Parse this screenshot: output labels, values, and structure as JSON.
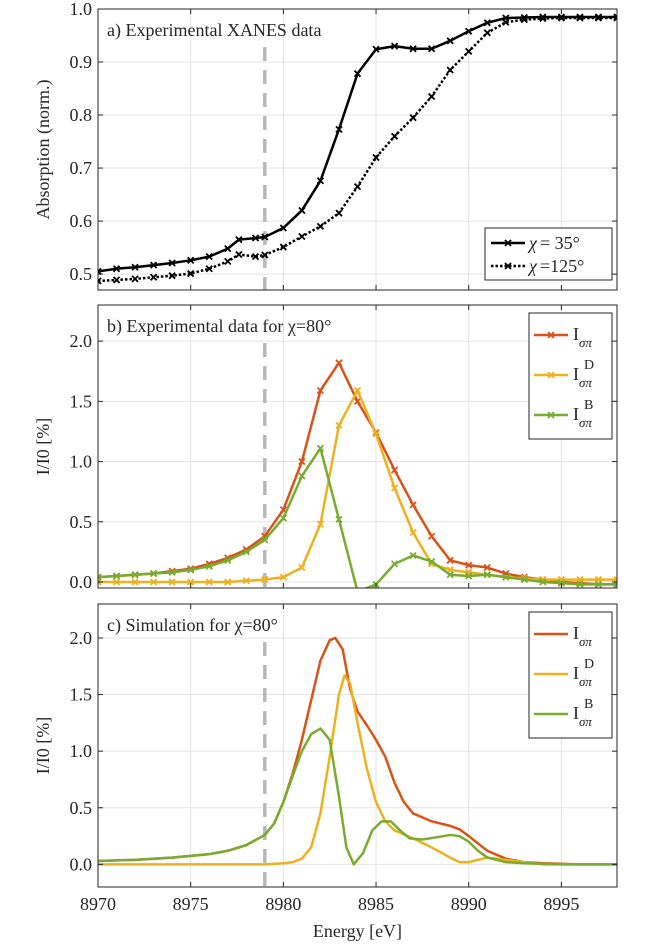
{
  "chart_data": [
    {
      "type": "line",
      "panel": "a",
      "title": "a) Experimental XANES data",
      "xlabel": "",
      "ylabel": "Absorption (norm.)",
      "xlim": [
        8970,
        8998
      ],
      "ylim": [
        0.47,
        1.0
      ],
      "yticks": [
        0.5,
        0.6,
        0.7,
        0.8,
        0.9,
        1.0
      ],
      "ytick_labels": [
        "0.5",
        "0.6",
        "0.7",
        "0.8",
        "0.9",
        "1.0"
      ],
      "grid": true,
      "legend_position": "bottom-right",
      "vline": 8979,
      "series": [
        {
          "name": "χ= 35°",
          "legend_text": "= 35°",
          "color": "#000000",
          "dash": "solid",
          "marker": "x",
          "x": [
            8970,
            8971,
            8972,
            8973,
            8974,
            8975,
            8976,
            8977,
            8977.6,
            8978.5,
            8979,
            8980,
            8981,
            8982,
            8983,
            8984,
            8985,
            8986,
            8987,
            8988,
            8989,
            8990,
            8991,
            8992,
            8993,
            8994,
            8995,
            8996,
            8997,
            8998
          ],
          "y": [
            0.505,
            0.51,
            0.513,
            0.517,
            0.521,
            0.526,
            0.533,
            0.548,
            0.565,
            0.568,
            0.57,
            0.587,
            0.62,
            0.676,
            0.773,
            0.878,
            0.924,
            0.93,
            0.925,
            0.925,
            0.94,
            0.958,
            0.974,
            0.983,
            0.984,
            0.985,
            0.985,
            0.985,
            0.985,
            0.985
          ]
        },
        {
          "name": "χ=125°",
          "legend_text": "=125°",
          "color": "#000000",
          "dash": "dotted",
          "marker": "x",
          "x": [
            8970,
            8971,
            8972,
            8973,
            8974,
            8975,
            8976,
            8977,
            8977.6,
            8978.5,
            8979,
            8980,
            8981,
            8982,
            8983,
            8984,
            8985,
            8986,
            8987,
            8988,
            8989,
            8990,
            8991,
            8992,
            8993,
            8994,
            8995,
            8996,
            8997,
            8998
          ],
          "y": [
            0.487,
            0.489,
            0.491,
            0.494,
            0.497,
            0.501,
            0.51,
            0.524,
            0.537,
            0.533,
            0.536,
            0.551,
            0.571,
            0.59,
            0.615,
            0.665,
            0.72,
            0.76,
            0.795,
            0.835,
            0.885,
            0.92,
            0.955,
            0.975,
            0.98,
            0.982,
            0.983,
            0.983,
            0.983,
            0.983
          ]
        }
      ]
    },
    {
      "type": "line",
      "panel": "b",
      "title": "b) Experimental data for χ=80°",
      "xlabel": "",
      "ylabel": "I/I0 [%]",
      "xlim": [
        8970,
        8998
      ],
      "ylim": [
        -0.05,
        2.3
      ],
      "yticks": [
        0,
        0.5,
        1.0,
        1.5,
        2.0
      ],
      "ytick_labels": [
        "0.0",
        "0.5",
        "1.0",
        "1.5",
        "2.0"
      ],
      "grid": true,
      "legend_position": "top-right",
      "vline": 8979,
      "series": [
        {
          "name": "Iσπ",
          "sup": "",
          "color": "#D95319",
          "marker": "x",
          "x": [
            8970,
            8971,
            8972,
            8973,
            8974,
            8975,
            8976,
            8977,
            8978,
            8979,
            8980,
            8981,
            8982,
            8983,
            8984,
            8985,
            8986,
            8987,
            8988,
            8989,
            8990,
            8991,
            8992,
            8993,
            8994,
            8995,
            8996,
            8997,
            8998
          ],
          "y": [
            0.04,
            0.05,
            0.06,
            0.07,
            0.09,
            0.11,
            0.15,
            0.2,
            0.27,
            0.38,
            0.6,
            1.0,
            1.59,
            1.82,
            1.5,
            1.24,
            0.93,
            0.64,
            0.38,
            0.18,
            0.14,
            0.12,
            0.07,
            0.04,
            0.02,
            0.0,
            -0.01,
            -0.02,
            -0.02
          ]
        },
        {
          "name": "Iσπ^D",
          "sup": "D",
          "color": "#EDB120",
          "marker": "x",
          "x": [
            8970,
            8971,
            8972,
            8973,
            8974,
            8975,
            8976,
            8977,
            8978,
            8979,
            8980,
            8981,
            8982,
            8983,
            8984,
            8985,
            8986,
            8987,
            8988,
            8989,
            8990,
            8991,
            8992,
            8993,
            8994,
            8995,
            8996,
            8997,
            8998
          ],
          "y": [
            0.0,
            0.0,
            0.0,
            0.0,
            0.0,
            0.0,
            0.0,
            0.0,
            0.01,
            0.02,
            0.04,
            0.12,
            0.48,
            1.3,
            1.59,
            1.23,
            0.78,
            0.41,
            0.15,
            0.1,
            0.08,
            0.06,
            0.04,
            0.03,
            0.02,
            0.02,
            0.02,
            0.02,
            0.02
          ]
        },
        {
          "name": "Iσπ^B",
          "sup": "B",
          "color": "#77AC30",
          "marker": "x",
          "x": [
            8970,
            8971,
            8972,
            8973,
            8974,
            8975,
            8976,
            8977,
            8978,
            8979,
            8980,
            8981,
            8982,
            8983,
            8984,
            8985,
            8986,
            8987,
            8988,
            8989,
            8990,
            8991,
            8992,
            8993,
            8994,
            8995,
            8996,
            8997,
            8998
          ],
          "y": [
            0.04,
            0.05,
            0.06,
            0.07,
            0.08,
            0.1,
            0.13,
            0.18,
            0.25,
            0.35,
            0.53,
            0.88,
            1.11,
            0.52,
            -0.08,
            -0.02,
            0.15,
            0.22,
            0.17,
            0.06,
            0.05,
            0.06,
            0.04,
            0.02,
            0.0,
            -0.01,
            -0.02,
            -0.02,
            -0.02
          ]
        }
      ]
    },
    {
      "type": "line",
      "panel": "c",
      "title": "c) Simulation for χ=80°",
      "xlabel": "Energy [eV]",
      "ylabel": "I/I0 [%]",
      "xlim": [
        8970,
        8998
      ],
      "ylim": [
        -0.2,
        2.3
      ],
      "xticks": [
        8970,
        8975,
        8980,
        8985,
        8990,
        8995
      ],
      "xtick_labels": [
        "8970",
        "8975",
        "8980",
        "8985",
        "8990",
        "8995"
      ],
      "yticks": [
        0,
        0.5,
        1.0,
        1.5,
        2.0
      ],
      "ytick_labels": [
        "0.0",
        "0.5",
        "1.0",
        "1.5",
        "2.0"
      ],
      "grid": true,
      "legend_position": "top-right",
      "vline": 8979,
      "series": [
        {
          "name": "Iσπ",
          "sup": "",
          "color": "#D95319",
          "marker": "none",
          "x": [
            8970,
            8972,
            8974,
            8976,
            8977,
            8978,
            8979,
            8979.5,
            8980,
            8980.5,
            8981,
            8981.5,
            8982,
            8982.5,
            8982.8,
            8983.2,
            8983.6,
            8984,
            8984.5,
            8985,
            8985.5,
            8986,
            8986.5,
            8987,
            8988,
            8989,
            8989.5,
            8990,
            8991,
            8992,
            8993,
            8994,
            8996,
            8998
          ],
          "y": [
            0.03,
            0.04,
            0.06,
            0.09,
            0.12,
            0.17,
            0.26,
            0.36,
            0.55,
            0.8,
            1.1,
            1.45,
            1.8,
            1.98,
            2.0,
            1.9,
            1.55,
            1.35,
            1.23,
            1.1,
            0.95,
            0.72,
            0.55,
            0.45,
            0.38,
            0.34,
            0.31,
            0.25,
            0.12,
            0.05,
            0.02,
            0.01,
            0.0,
            0.0
          ]
        },
        {
          "name": "Iσπ^D",
          "sup": "D",
          "color": "#EDB120",
          "marker": "none",
          "x": [
            8970,
            8975,
            8978,
            8979,
            8980,
            8980.5,
            8981,
            8981.5,
            8982,
            8982.5,
            8983,
            8983.3,
            8983.6,
            8984,
            8984.5,
            8985,
            8985.5,
            8986,
            8987,
            8988,
            8989,
            8989.5,
            8990,
            8991,
            8992,
            8994,
            8998
          ],
          "y": [
            0.0,
            0.0,
            0.0,
            0.0,
            0.01,
            0.02,
            0.05,
            0.15,
            0.45,
            0.95,
            1.5,
            1.67,
            1.6,
            1.25,
            0.85,
            0.55,
            0.38,
            0.3,
            0.23,
            0.15,
            0.06,
            0.02,
            0.02,
            0.06,
            0.04,
            0.0,
            0.0
          ]
        },
        {
          "name": "Iσπ^B",
          "sup": "B",
          "color": "#77AC30",
          "marker": "none",
          "x": [
            8970,
            8972,
            8974,
            8976,
            8977,
            8978,
            8979,
            8979.5,
            8980,
            8980.5,
            8981,
            8981.5,
            8982,
            8982.5,
            8983,
            8983.4,
            8983.8,
            8984.3,
            8984.8,
            8985.3,
            8985.8,
            8986.3,
            8986.8,
            8987.5,
            8988.3,
            8989,
            8989.5,
            8990,
            8990.5,
            8991,
            8992,
            8993,
            8995,
            8998
          ],
          "y": [
            0.03,
            0.04,
            0.06,
            0.09,
            0.12,
            0.17,
            0.26,
            0.36,
            0.55,
            0.78,
            1.0,
            1.15,
            1.2,
            1.1,
            0.6,
            0.15,
            0.0,
            0.1,
            0.3,
            0.38,
            0.38,
            0.3,
            0.23,
            0.22,
            0.24,
            0.26,
            0.25,
            0.2,
            0.12,
            0.06,
            0.02,
            0.01,
            0.0,
            0.0
          ]
        }
      ]
    }
  ]
}
